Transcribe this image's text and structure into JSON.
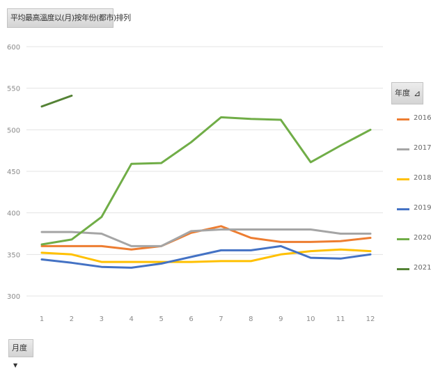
{
  "title_button": {
    "label": "平均最高溫度以(月)按年份(都市)排列"
  },
  "legend_button": {
    "label": "年度",
    "icon": "filter-icon"
  },
  "axis_button": {
    "label": "月度",
    "icon": "dropdown-arrow-icon"
  },
  "chart_data": {
    "type": "line",
    "x": [
      1,
      2,
      3,
      4,
      5,
      6,
      7,
      8,
      9,
      10,
      11,
      12
    ],
    "ylim": [
      300,
      600
    ],
    "yticks": [
      300,
      350,
      400,
      450,
      500,
      550,
      600
    ],
    "grid": true,
    "legend_position": "right",
    "series": [
      {
        "name": "2016",
        "color": "#ED7D31",
        "values": [
          360,
          360,
          360,
          356,
          360,
          376,
          384,
          370,
          365,
          365,
          366,
          370
        ]
      },
      {
        "name": "2017",
        "color": "#A5A5A5",
        "values": [
          377,
          377,
          375,
          360,
          360,
          378,
          380,
          380,
          380,
          380,
          375,
          375
        ]
      },
      {
        "name": "2018",
        "color": "#FFC000",
        "values": [
          352,
          350,
          341,
          341,
          341,
          341,
          342,
          342,
          350,
          354,
          356,
          354
        ]
      },
      {
        "name": "2019",
        "color": "#4472C4",
        "values": [
          344,
          340,
          335,
          334,
          339,
          347,
          355,
          355,
          360,
          346,
          345,
          350
        ]
      },
      {
        "name": "2020",
        "color": "#70AD47",
        "values": [
          362,
          368,
          395,
          459,
          460,
          485,
          515,
          513,
          512,
          461,
          481,
          500
        ]
      },
      {
        "name": "2021",
        "color": "#548235",
        "values": [
          528,
          541,
          null,
          null,
          null,
          null,
          null,
          null,
          null,
          null,
          null,
          null
        ]
      }
    ]
  }
}
